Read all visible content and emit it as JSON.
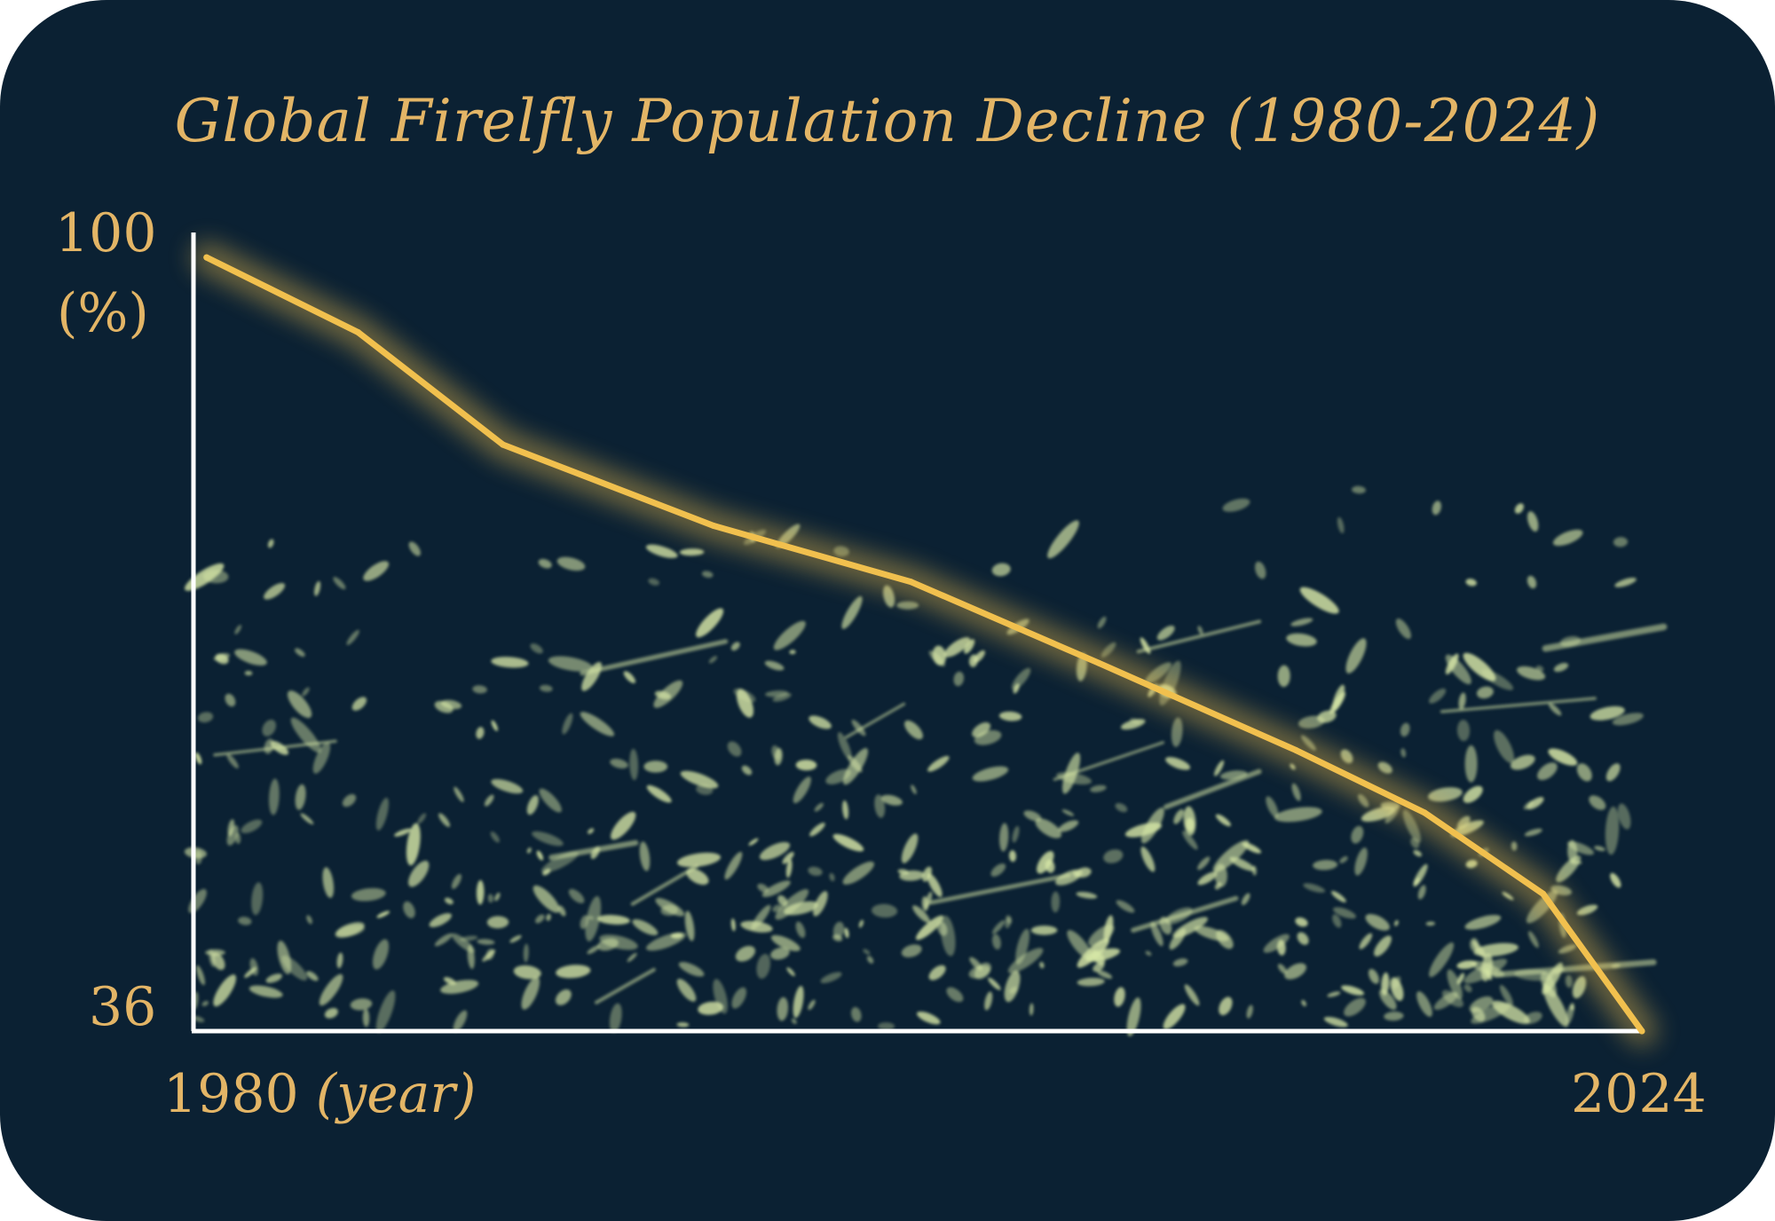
{
  "colors": {
    "background": "#0b2133",
    "accent": "#e3b566",
    "line": "#f1c04e",
    "axis": "#ffffff",
    "fireflies": "#d6e6a6"
  },
  "chart_data": {
    "type": "line",
    "title": "Global Firelfly Population Decline (1980-2024)",
    "xlabel": "(year)",
    "ylabel": "(%)",
    "xlim": [
      1980,
      2024
    ],
    "ylim": [
      36,
      100
    ],
    "x_tick_labels": [
      "1980",
      "2024"
    ],
    "y_tick_labels": [
      "100",
      "36"
    ],
    "grid": false,
    "series": [
      {
        "x": [
          1980.4,
          1985,
          1989.4,
          1995.8,
          2001.8,
          2007.5,
          2013.5,
          2017.4,
          2021,
          2024
        ],
        "values": [
          98,
          92,
          83,
          76.5,
          72,
          65.5,
          58.5,
          53.5,
          47,
          36
        ]
      }
    ]
  }
}
